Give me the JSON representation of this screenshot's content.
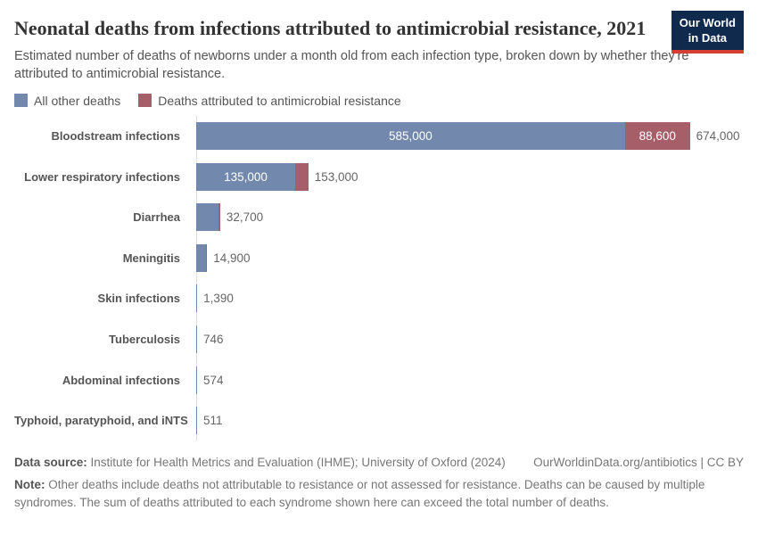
{
  "header": {
    "title": "Neonatal deaths from infections attributed to antimicrobial resistance, 2021",
    "subtitle": "Estimated number of deaths of newborns under a month old from each infection type, broken down by whether they're attributed to antimicrobial resistance.",
    "logo": {
      "line1": "Our World",
      "line2": "in Data"
    }
  },
  "colors": {
    "other_deaths_blue": "#7289ad",
    "amr_deaths_red": "#a65f68",
    "axis_line": "#dddddd",
    "logo_navy": "#102a4d",
    "logo_red": "#d63f34"
  },
  "legend": [
    {
      "label": "All other deaths",
      "color": "#7289ad"
    },
    {
      "label": "Deaths attributed to antimicrobial resistance",
      "color": "#a65f68"
    }
  ],
  "chart_data": {
    "type": "bar",
    "orientation": "horizontal",
    "stacked": true,
    "x_max": 674000,
    "grid": false,
    "legend_position": "top",
    "series_names": [
      "All other deaths",
      "Deaths attributed to antimicrobial resistance"
    ],
    "rows": [
      {
        "category": "Bloodstream infections",
        "other": 585000,
        "amr": 88600,
        "total": 674000,
        "other_label": "585,000",
        "amr_label": "88,600",
        "total_label": "674,000"
      },
      {
        "category": "Lower respiratory infections",
        "other": 135000,
        "total": 153000,
        "other_label": "135,000",
        "total_label": "153,000"
      },
      {
        "category": "Diarrhea",
        "total": 32700,
        "total_label": "32,700"
      },
      {
        "category": "Meningitis",
        "total": 14900,
        "total_label": "14,900"
      },
      {
        "category": "Skin infections",
        "total": 1390,
        "total_label": "1,390"
      },
      {
        "category": "Tuberculosis",
        "total": 746,
        "total_label": "746"
      },
      {
        "category": "Abdominal infections",
        "total": 574,
        "total_label": "574"
      },
      {
        "category": "Typhoid, paratyphoid, and iNTS",
        "total": 511,
        "total_label": "511"
      }
    ]
  },
  "footer": {
    "source_label": "Data source:",
    "source_text": "Institute for Health Metrics and Evaluation (IHME); University of Oxford (2024)",
    "credit": "OurWorldinData.org/antibiotics | CC BY",
    "note_label": "Note:",
    "note_text": "Other deaths include deaths not attributable to resistance or not assessed for resistance. Deaths can be caused by multiple syndromes. The sum of deaths attributed to each syndrome shown here can exceed the total number of deaths."
  }
}
